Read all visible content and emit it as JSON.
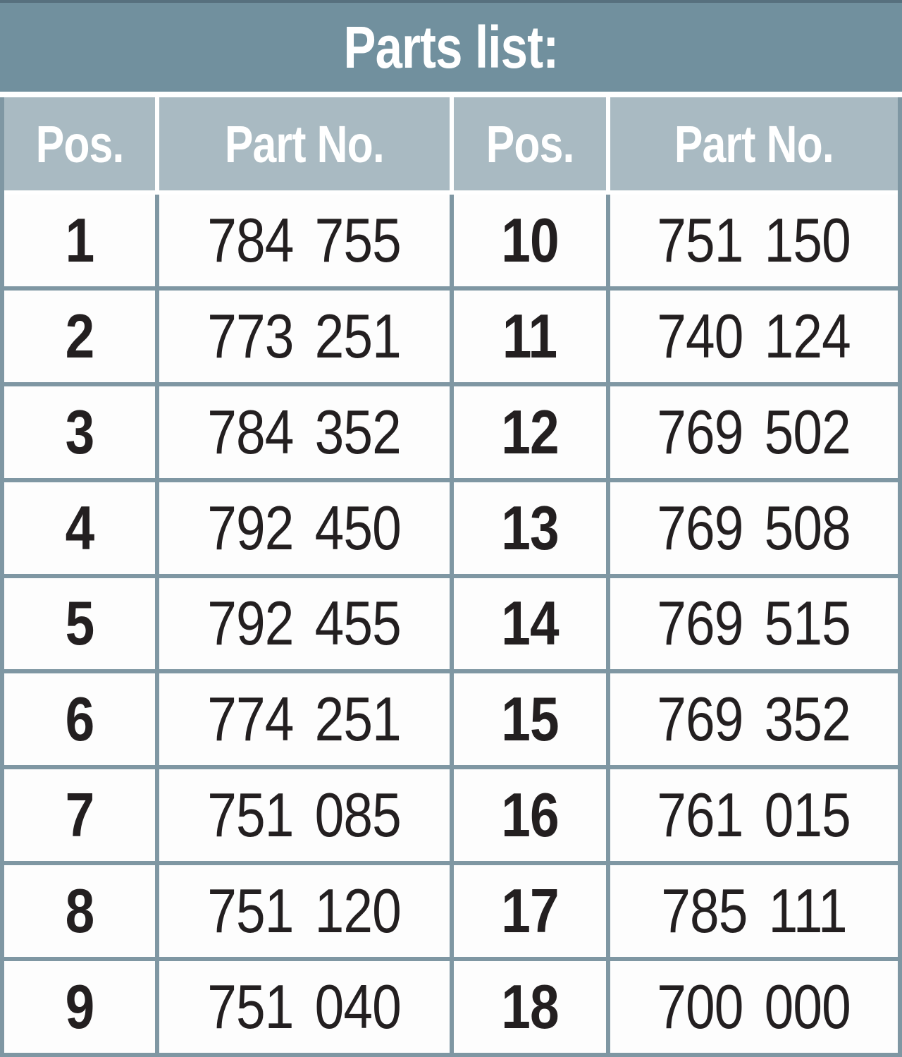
{
  "title": "Parts list:",
  "columns": [
    "Pos.",
    "Part No.",
    "Pos.",
    "Part No."
  ],
  "rows": [
    {
      "pos_left": "1",
      "part_left": "784 755",
      "pos_right": "10",
      "part_right": "751 150"
    },
    {
      "pos_left": "2",
      "part_left": "773 251",
      "pos_right": "11",
      "part_right": "740 124"
    },
    {
      "pos_left": "3",
      "part_left": "784 352",
      "pos_right": "12",
      "part_right": "769 502"
    },
    {
      "pos_left": "4",
      "part_left": "792 450",
      "pos_right": "13",
      "part_right": "769 508"
    },
    {
      "pos_left": "5",
      "part_left": "792 455",
      "pos_right": "14",
      "part_right": "769 515"
    },
    {
      "pos_left": "6",
      "part_left": "774 251",
      "pos_right": "15",
      "part_right": "769 352"
    },
    {
      "pos_left": "7",
      "part_left": "751 085",
      "pos_right": "16",
      "part_right": "761 015"
    },
    {
      "pos_left": "8",
      "part_left": "751 120",
      "pos_right": "17",
      "part_right": "785 111"
    },
    {
      "pos_left": "9",
      "part_left": "751 040",
      "pos_right": "18",
      "part_right": "700 000"
    }
  ],
  "colors": {
    "title_bg": "#71909e",
    "title_top_border": "#57707e",
    "subheader_bg": "#a9bac2",
    "grid_border": "#7f97a3",
    "cell_bg": "#fdfdfd",
    "header_text": "#ffffff",
    "cell_text": "#231f20"
  }
}
